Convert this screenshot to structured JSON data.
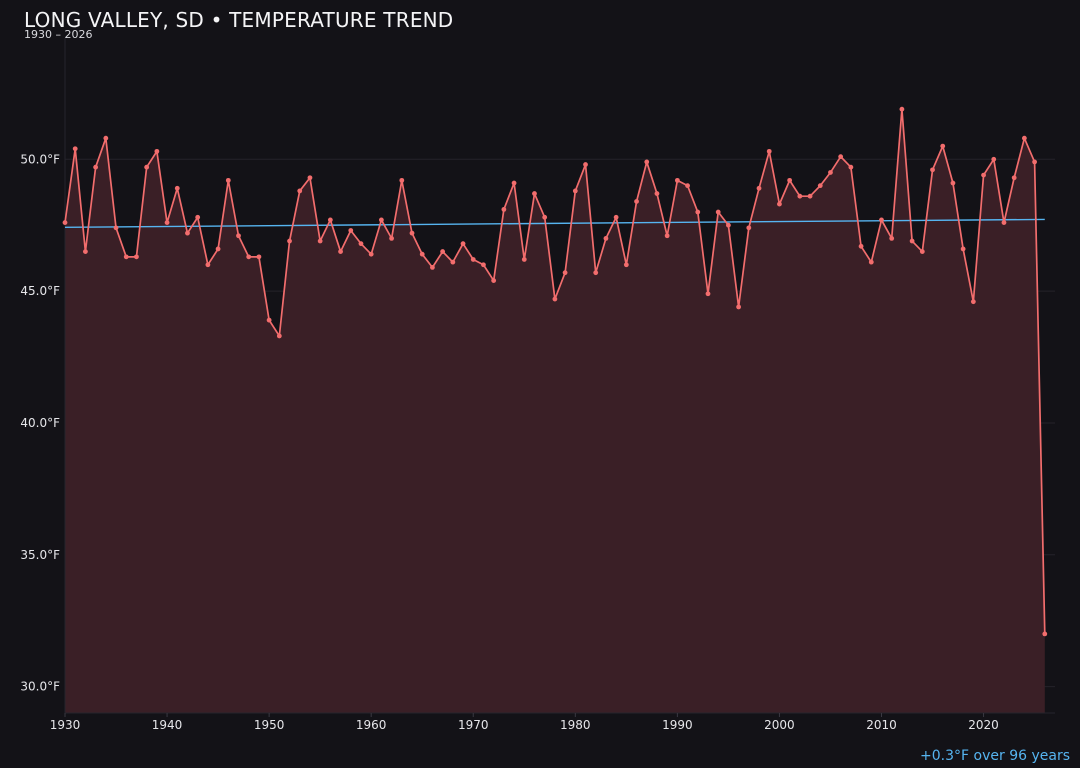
{
  "chart_data": {
    "type": "line",
    "title": "LONG VALLEY, SD • TEMPERATURE TREND",
    "subtitle": "1930 – 2026",
    "annotation": "+0.3°F over 96 years",
    "x": [
      1930,
      1931,
      1932,
      1933,
      1934,
      1935,
      1936,
      1937,
      1938,
      1939,
      1940,
      1941,
      1942,
      1943,
      1944,
      1945,
      1946,
      1947,
      1948,
      1949,
      1950,
      1951,
      1952,
      1953,
      1954,
      1955,
      1956,
      1957,
      1958,
      1959,
      1960,
      1961,
      1962,
      1963,
      1964,
      1965,
      1966,
      1967,
      1968,
      1969,
      1970,
      1971,
      1972,
      1973,
      1974,
      1975,
      1976,
      1977,
      1978,
      1979,
      1980,
      1981,
      1982,
      1983,
      1984,
      1985,
      1986,
      1987,
      1988,
      1989,
      1990,
      1991,
      1992,
      1993,
      1994,
      1995,
      1996,
      1997,
      1998,
      1999,
      2000,
      2001,
      2002,
      2003,
      2004,
      2005,
      2006,
      2007,
      2008,
      2009,
      2010,
      2011,
      2012,
      2013,
      2014,
      2015,
      2016,
      2017,
      2018,
      2019,
      2020,
      2021,
      2022,
      2023,
      2024,
      2025,
      2026
    ],
    "series": [
      {
        "values": [
          47.6,
          50.4,
          46.5,
          49.7,
          50.8,
          47.4,
          46.3,
          46.3,
          49.7,
          50.3,
          47.6,
          48.9,
          47.2,
          47.8,
          46.0,
          46.6,
          49.2,
          47.1,
          46.3,
          46.3,
          43.9,
          43.3,
          46.9,
          48.8,
          49.3,
          46.9,
          47.7,
          46.5,
          47.3,
          46.8,
          46.4,
          47.7,
          47.0,
          49.2,
          47.2,
          46.4,
          45.9,
          46.5,
          46.1,
          46.8,
          46.2,
          46.0,
          45.4,
          48.1,
          49.1,
          46.2,
          48.7,
          47.8,
          44.7,
          45.7,
          48.8,
          49.8,
          45.7,
          47.0,
          47.8,
          46.0,
          48.4,
          49.9,
          48.7,
          47.1,
          49.2,
          49.0,
          48.0,
          44.9,
          48.0,
          47.5,
          44.4,
          47.4,
          48.9,
          50.3,
          48.3,
          49.2,
          48.6,
          48.6,
          49.0,
          49.5,
          50.1,
          49.7,
          46.7,
          46.1,
          47.7,
          47.0,
          51.9,
          46.9,
          46.5,
          49.6,
          50.5,
          49.1,
          46.6,
          44.6,
          49.4,
          50.0,
          47.6,
          49.3,
          50.8,
          49.9,
          32.0
        ],
        "color": "#f26d6d"
      }
    ],
    "trend_line": {
      "start": [
        1930,
        47.42
      ],
      "end": [
        2026,
        47.72
      ],
      "color": "#56b4f0"
    },
    "yticks": [
      30,
      35,
      40,
      45,
      50
    ],
    "ytick_labels": [
      "30.0°F",
      "35.0°F",
      "40.0°F",
      "45.0°F",
      "50.0°F"
    ],
    "xticks": [
      1930,
      1940,
      1950,
      1960,
      1970,
      1980,
      1990,
      2000,
      2010,
      2020
    ],
    "xtick_labels": [
      "1930",
      "1940",
      "1950",
      "1960",
      "1970",
      "1980",
      "1990",
      "2000",
      "2010",
      "2020"
    ],
    "ylim": [
      29.0,
      54.6
    ],
    "xlim": [
      1930,
      2027
    ],
    "grid": true,
    "fill_color": "#3a1f26",
    "background": "#131217"
  }
}
